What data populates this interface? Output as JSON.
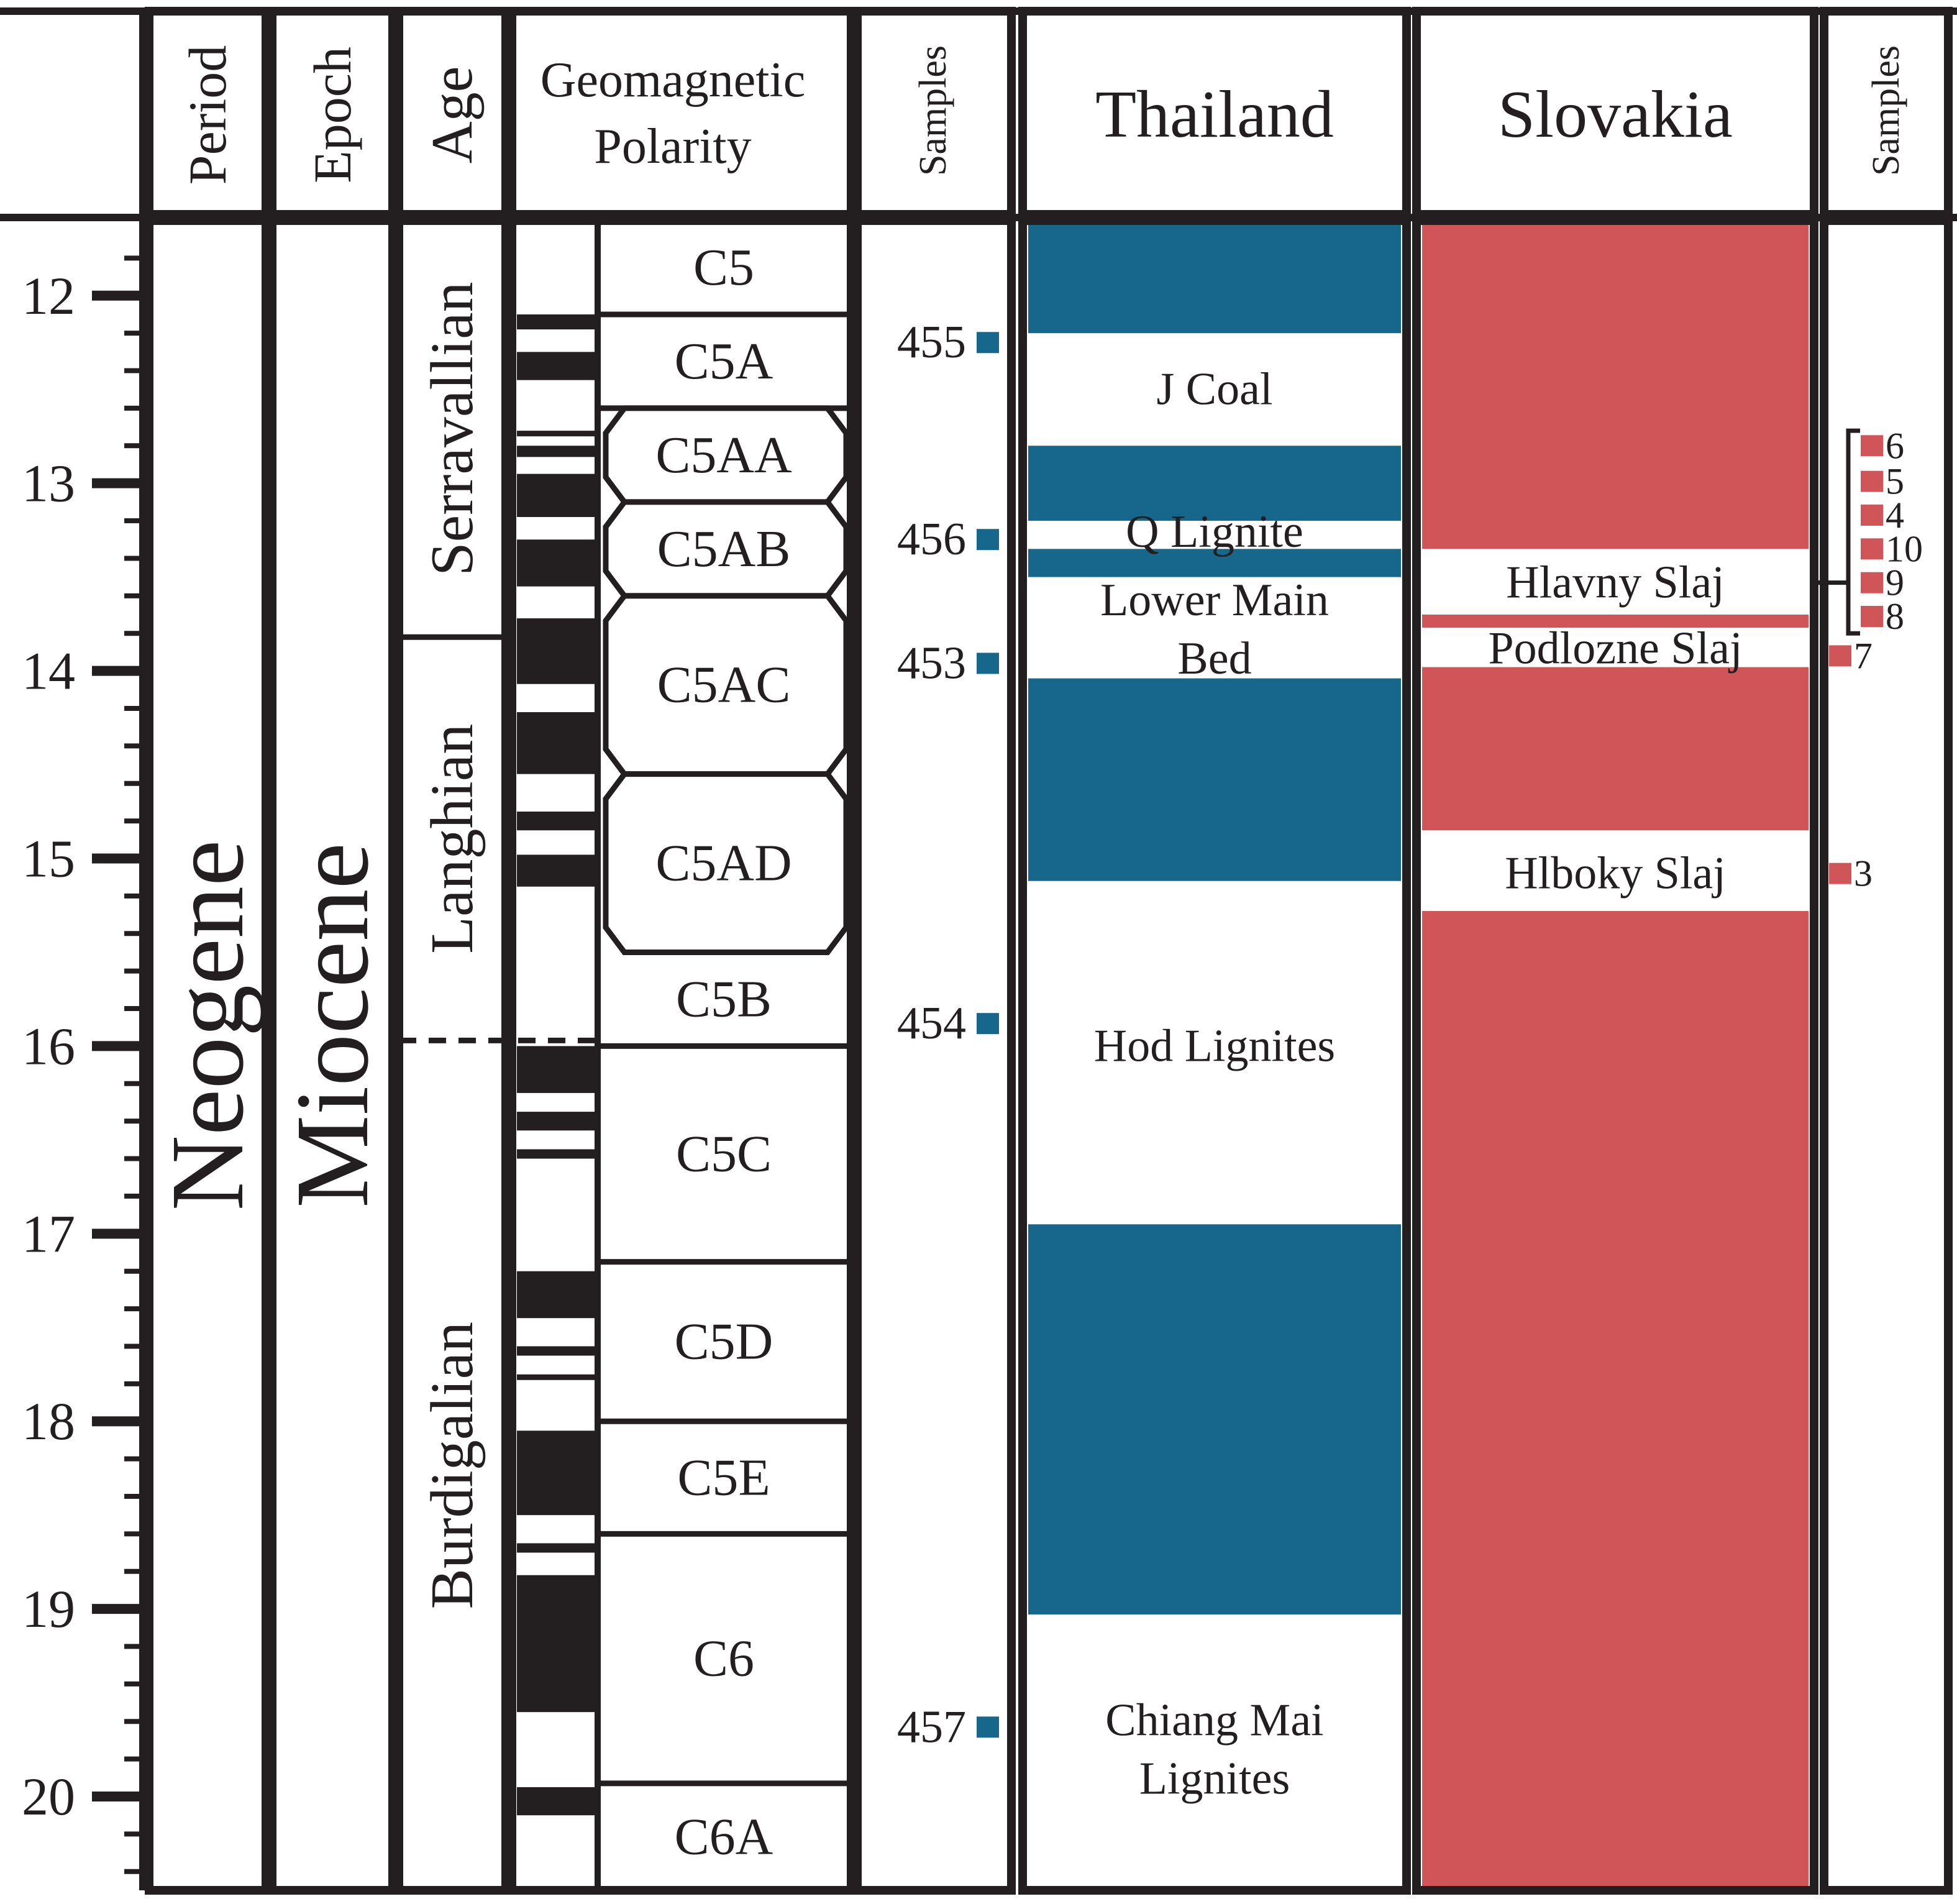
{
  "headers": {
    "period": "Period",
    "epoch": "Epoch",
    "age": "Age",
    "polarity_line1": "Geomagnetic",
    "polarity_line2": "Polarity",
    "samples_left": "Samples",
    "thailand": "Thailand",
    "slovakia": "Slovakia",
    "samples_right": "Samples"
  },
  "period": {
    "label": "Neogene"
  },
  "epoch": {
    "label": "Miocene"
  },
  "ages": [
    {
      "label": "Serravallian",
      "top": 11.6,
      "bottom": 13.82
    },
    {
      "label": "Langhian",
      "top": 13.82,
      "bottom": 15.97
    },
    {
      "label": "Burdigalian",
      "top": 15.97,
      "bottom": 20.5
    }
  ],
  "scale": {
    "min": 11.6,
    "max": 20.5,
    "major_ticks": [
      "12",
      "13",
      "14",
      "15",
      "16",
      "17",
      "18",
      "19",
      "20"
    ],
    "minor_step": 0.2
  },
  "polarity_normal": [
    [
      12.1,
      12.18
    ],
    [
      12.3,
      12.45
    ],
    [
      12.72,
      12.75
    ],
    [
      12.8,
      12.86
    ],
    [
      12.95,
      13.18
    ],
    [
      13.3,
      13.55
    ],
    [
      13.72,
      14.07
    ],
    [
      14.22,
      14.55
    ],
    [
      14.75,
      14.85
    ],
    [
      14.98,
      15.15
    ],
    [
      16.0,
      16.25
    ],
    [
      16.35,
      16.45
    ],
    [
      16.55,
      16.6
    ],
    [
      17.2,
      17.45
    ],
    [
      17.6,
      17.65
    ],
    [
      17.75,
      17.78
    ],
    [
      18.05,
      18.5
    ],
    [
      18.65,
      18.7
    ],
    [
      18.82,
      19.55
    ],
    [
      19.95,
      20.1
    ]
  ],
  "chrons": [
    {
      "label": "C5",
      "top": 11.6,
      "bottom": 12.1
    },
    {
      "label": "C5A",
      "top": 12.1,
      "bottom": 12.6
    },
    {
      "label": "C5AA",
      "top": 12.6,
      "bottom": 13.1
    },
    {
      "label": "C5AB",
      "top": 13.1,
      "bottom": 13.6
    },
    {
      "label": "C5AC",
      "top": 13.6,
      "bottom": 14.55
    },
    {
      "label": "C5AD",
      "top": 14.55,
      "bottom": 15.5
    },
    {
      "label": "C5B",
      "top": 15.5,
      "bottom": 16.0
    },
    {
      "label": "C5C",
      "top": 16.0,
      "bottom": 17.15
    },
    {
      "label": "C5D",
      "top": 17.15,
      "bottom": 18.0
    },
    {
      "label": "C5E",
      "top": 18.0,
      "bottom": 18.6
    },
    {
      "label": "C6",
      "top": 18.6,
      "bottom": 19.93
    },
    {
      "label": "C6A",
      "top": 19.93,
      "bottom": 20.5
    }
  ],
  "samples_left": [
    {
      "label": "455",
      "age": 12.25
    },
    {
      "label": "456",
      "age": 13.3
    },
    {
      "label": "453",
      "age": 13.96
    },
    {
      "label": "454",
      "age": 15.88
    },
    {
      "label": "457",
      "age": 19.63
    }
  ],
  "thailand_colored": [
    [
      11.6,
      12.2
    ],
    [
      12.8,
      13.2
    ],
    [
      13.35,
      13.5
    ],
    [
      14.04,
      15.12
    ],
    [
      16.95,
      19.03
    ]
  ],
  "thailand_units": [
    {
      "lines": [
        "J Coal"
      ],
      "age": 12.5
    },
    {
      "lines": [
        "Q Lignite"
      ],
      "age": 13.26
    },
    {
      "lines": [
        "Lower Main",
        "Bed"
      ],
      "age": 13.78
    },
    {
      "lines": [
        "Hod Lignites"
      ],
      "age": 16.0
    },
    {
      "lines": [
        "Chiang Mai",
        "Lignites"
      ],
      "age": 19.75
    }
  ],
  "slovakia_gaps": [
    [
      13.35,
      13.7
    ],
    [
      13.77,
      13.98
    ],
    [
      14.85,
      15.28
    ]
  ],
  "slovakia_units": [
    {
      "label": "Hlavny Slaj",
      "age": 13.53
    },
    {
      "label": "Podlozne Slaj",
      "age": 13.88
    },
    {
      "label": "Hlboky Slaj",
      "age": 15.08
    }
  ],
  "samples_right": [
    {
      "label": "6",
      "age": 12.8
    },
    {
      "label": "5",
      "age": 12.99
    },
    {
      "label": "4",
      "age": 13.17
    },
    {
      "label": "10",
      "age": 13.35
    },
    {
      "label": "9",
      "age": 13.53
    },
    {
      "label": "8",
      "age": 13.71
    },
    {
      "label": "7",
      "age": 13.92
    },
    {
      "label": "3",
      "age": 15.08
    }
  ],
  "colors": {
    "thailand": "#17678c",
    "slovakia": "#d05558",
    "line": "#231f20",
    "background": "#ffffff"
  }
}
